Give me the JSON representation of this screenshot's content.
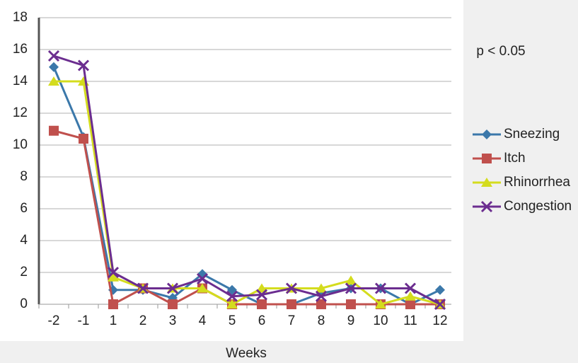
{
  "chart_data": {
    "type": "line",
    "x_label": "Weeks",
    "annotation": "p < 0.05",
    "categories": [
      "-2",
      "-1",
      "1",
      "2",
      "3",
      "4",
      "5",
      "6",
      "7",
      "8",
      "9",
      "10",
      "11",
      "12"
    ],
    "ylim": [
      0,
      18
    ],
    "yticks": [
      0,
      2,
      4,
      6,
      8,
      10,
      12,
      14,
      16,
      18
    ],
    "grid": true,
    "legend": "right",
    "series": [
      {
        "name": "Sneezing",
        "color": "#3b78aa",
        "marker": "diamond",
        "values": [
          14.9,
          10.5,
          0.9,
          0.9,
          0.4,
          1.9,
          0.9,
          0,
          0,
          0.7,
          1,
          1,
          0,
          0.9
        ]
      },
      {
        "name": "Itch",
        "color": "#c0504d",
        "marker": "square",
        "values": [
          10.9,
          10.4,
          0,
          1,
          0,
          1,
          0,
          0,
          0,
          0,
          0,
          0,
          0,
          0
        ]
      },
      {
        "name": "Rhinorrhea",
        "color": "#d4dc1e",
        "marker": "triangle",
        "values": [
          14,
          14,
          1.7,
          1,
          1,
          1,
          0,
          1,
          1,
          1,
          1.5,
          0,
          0.5,
          0
        ]
      },
      {
        "name": "Congestion",
        "color": "#6b2d8f",
        "marker": "x",
        "values": [
          15.6,
          15,
          2,
          1,
          1,
          1.6,
          0.5,
          0.6,
          1,
          0.5,
          1,
          1,
          1,
          0
        ]
      }
    ]
  }
}
